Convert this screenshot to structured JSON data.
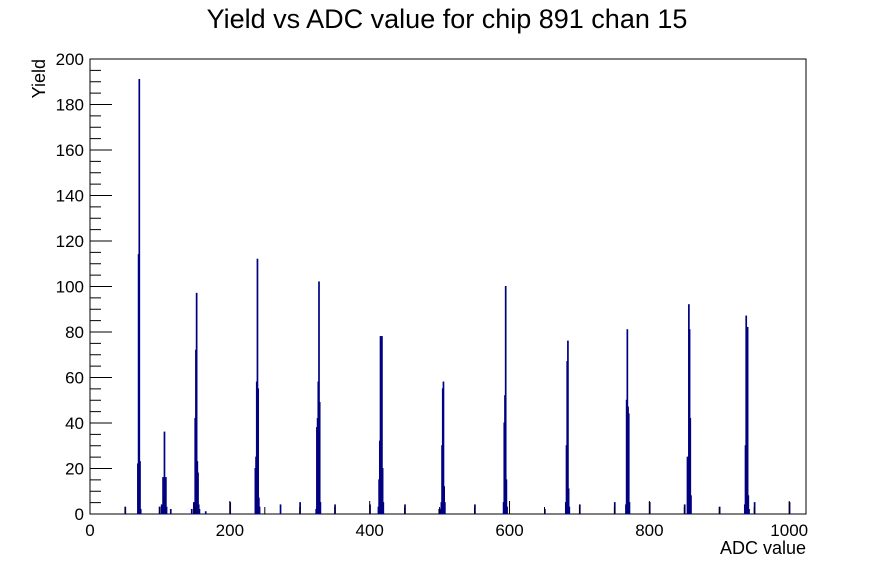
{
  "chart_data": {
    "type": "bar",
    "title": "Yield vs ADC value for chip 891 chan 15",
    "xlabel": "ADC value",
    "ylabel": "Yield",
    "xlim": [
      0,
      1024
    ],
    "ylim": [
      0,
      200
    ],
    "x_ticks": [
      0,
      200,
      400,
      600,
      800,
      1000
    ],
    "y_ticks": [
      0,
      20,
      40,
      60,
      80,
      100,
      120,
      140,
      160,
      180,
      200
    ],
    "bin_width": 1,
    "grid": false,
    "legend": "none",
    "line_color": "#000080",
    "series": [
      {
        "points": [
          [
            50,
            3
          ],
          [
            68,
            22
          ],
          [
            69,
            114
          ],
          [
            70,
            191
          ],
          [
            71,
            23
          ],
          [
            72,
            2
          ],
          [
            99,
            3
          ],
          [
            102,
            4
          ],
          [
            104,
            16
          ],
          [
            105,
            8
          ],
          [
            106,
            36
          ],
          [
            107,
            13
          ],
          [
            108,
            16
          ],
          [
            109,
            3
          ],
          [
            115,
            2
          ],
          [
            145,
            2
          ],
          [
            148,
            5
          ],
          [
            149,
            2
          ],
          [
            150,
            42
          ],
          [
            151,
            72
          ],
          [
            152,
            97
          ],
          [
            153,
            23
          ],
          [
            154,
            18
          ],
          [
            155,
            4
          ],
          [
            156,
            2
          ],
          [
            165,
            1
          ],
          [
            200,
            5
          ],
          [
            236,
            20
          ],
          [
            237,
            25
          ],
          [
            238,
            58
          ],
          [
            239,
            112
          ],
          [
            240,
            55
          ],
          [
            241,
            7
          ],
          [
            242,
            3
          ],
          [
            272,
            4
          ],
          [
            300,
            5
          ],
          [
            323,
            2
          ],
          [
            324,
            38
          ],
          [
            325,
            42
          ],
          [
            326,
            58
          ],
          [
            327,
            102
          ],
          [
            328,
            49
          ],
          [
            329,
            5
          ],
          [
            350,
            4
          ],
          [
            400,
            4
          ],
          [
            412,
            3
          ],
          [
            413,
            15
          ],
          [
            414,
            32
          ],
          [
            415,
            78
          ],
          [
            416,
            75
          ],
          [
            417,
            78
          ],
          [
            418,
            20
          ],
          [
            419,
            5
          ],
          [
            450,
            4
          ],
          [
            499,
            2
          ],
          [
            500,
            2
          ],
          [
            502,
            5
          ],
          [
            503,
            30
          ],
          [
            504,
            55
          ],
          [
            505,
            58
          ],
          [
            506,
            12
          ],
          [
            507,
            5
          ],
          [
            550,
            4
          ],
          [
            591,
            5
          ],
          [
            592,
            40
          ],
          [
            593,
            52
          ],
          [
            594,
            100
          ],
          [
            595,
            15
          ],
          [
            596,
            3
          ],
          [
            650,
            2
          ],
          [
            680,
            5
          ],
          [
            681,
            30
          ],
          [
            682,
            67
          ],
          [
            683,
            76
          ],
          [
            684,
            11
          ],
          [
            685,
            3
          ],
          [
            700,
            4
          ],
          [
            750,
            5
          ],
          [
            766,
            4
          ],
          [
            767,
            50
          ],
          [
            768,
            81
          ],
          [
            769,
            47
          ],
          [
            770,
            44
          ],
          [
            771,
            5
          ],
          [
            800,
            5
          ],
          [
            850,
            4
          ],
          [
            854,
            25
          ],
          [
            855,
            24
          ],
          [
            856,
            92
          ],
          [
            857,
            81
          ],
          [
            858,
            42
          ],
          [
            859,
            8
          ],
          [
            900,
            3
          ],
          [
            936,
            4
          ],
          [
            937,
            30
          ],
          [
            938,
            87
          ],
          [
            939,
            41
          ],
          [
            940,
            82
          ],
          [
            941,
            8
          ],
          [
            942,
            2
          ],
          [
            950,
            5
          ],
          [
            1000,
            5
          ]
        ]
      }
    ]
  }
}
